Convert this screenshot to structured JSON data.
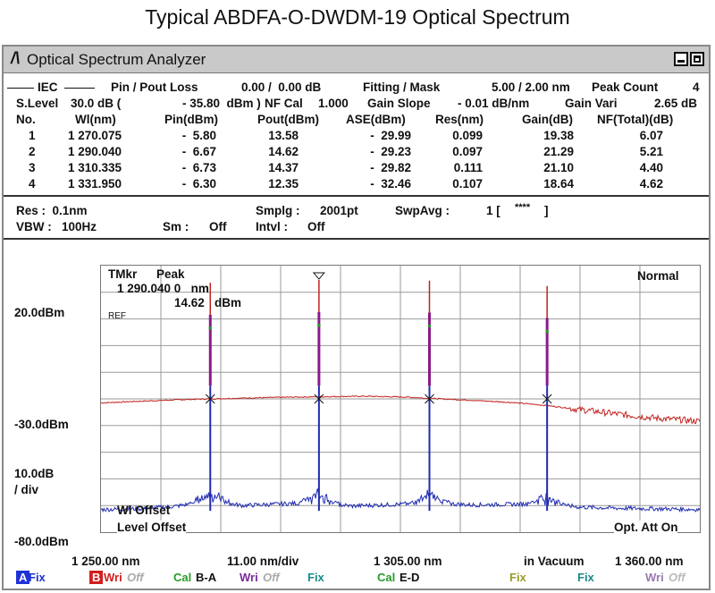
{
  "page_title": "Typical ABDFA-O-DWDM-19 Optical Spectrum",
  "window": {
    "title": "Optical Spectrum Analyzer",
    "logo": "/\\"
  },
  "header": {
    "iec": "IEC",
    "pin_pout_label": "Pin / Pout Loss",
    "pin_pout_value": "0.00 /  0.00 dB",
    "fitting_label": "Fitting / Mask",
    "fitting_value": "5.00 / 2.00 nm",
    "peak_count_label": "Peak Count",
    "peak_count_value": "4",
    "slevel_label": "S.Level",
    "slevel_value": "30.0 dB (",
    "slevel_dbm": "- 35.80  dBm )",
    "nfcal_label": "NF Cal",
    "nfcal_value": "1.000",
    "gain_slope_label": "Gain Slope",
    "gain_slope_value": "- 0.01 dB/nm",
    "gain_vari_label": "Gain Vari",
    "gain_vari_value": "2.65 dB"
  },
  "table": {
    "columns": [
      "No.",
      "Wl(nm)",
      "Pin(dBm)",
      "Pout(dBm)",
      "ASE(dBm)",
      "Res(nm)",
      "Gain(dB)",
      "NF(Total)(dB)"
    ],
    "rows": [
      [
        "1",
        "1 270.075",
        "-  5.80",
        "13.58",
        "-  29.99",
        "0.099",
        "19.38",
        "6.07"
      ],
      [
        "2",
        "1 290.040",
        "-  6.67",
        "14.62",
        "-  29.23",
        "0.097",
        "21.29",
        "5.21"
      ],
      [
        "3",
        "1 310.335",
        "-  6.73",
        "14.37",
        "-  29.82",
        "0.111",
        "21.10",
        "4.40"
      ],
      [
        "4",
        "1 331.950",
        "-  6.30",
        "12.35",
        "-  32.46",
        "0.107",
        "18.64",
        "4.62"
      ]
    ]
  },
  "settings": {
    "res": "Res :  0.1nm",
    "smplg_label": "Smplg :",
    "smplg_value": "2001pt",
    "swpavg_label": "SwpAvg :",
    "swpavg_value": "1 [",
    "swpavg_stars": "****",
    "swpavg_end": "]",
    "vbw": "VBW :   100Hz",
    "sm_label": "Sm :",
    "sm_value": "Off",
    "intvl_label": "Intvl :",
    "intvl_value": "Off"
  },
  "graph": {
    "tmkr_label": "TMkr",
    "peak_label": "Peak",
    "marker_wl": "1 290.040 0   nm",
    "marker_pow": "14.62   dBm",
    "ref_label": "REF",
    "mode": "Normal",
    "y_top": "20.0dBm",
    "y_mid": "-30.0dBm",
    "y_scale_1": "10.0dB",
    "y_scale_2": "/ div",
    "y_bottom": "-80.0dBm",
    "wl_offset": "Wl Offset",
    "level_offset": "Level Offset",
    "opt_att": "Opt. Att On",
    "x_start": "1 250.00 nm",
    "x_div": "11.00 nm/div",
    "x_center": "1 305.00 nm",
    "x_medium": "in Vacuum",
    "x_stop": "1 360.00 nm"
  },
  "bottom_bar": {
    "a_tag": "A",
    "a_fix": "Fix",
    "b_tag": "B",
    "b_wri": "Wri",
    "b_off": "Off",
    "cal_ba": "Cal",
    "cal_ba_value": "B-A",
    "wri1": "Wri",
    "wri1_off": "Off",
    "fix1": "Fix",
    "cal_ed": "Cal",
    "cal_ed_value": "E-D",
    "fix2": "Fix",
    "fix3": "Fix",
    "wri2": "Wri",
    "wri2_off": "Off"
  },
  "colors": {
    "red_trace": "#c0221e",
    "blue_trace": "#1f2bb0",
    "peak_magenta": "#8a1a8a",
    "tag_a": "#1e32d6",
    "tag_b": "#d21e1e",
    "green": "#2a9a2a",
    "purple": "#7a2a9a",
    "teal": "#1a8a8a",
    "olive": "#9a9a2a",
    "lavender": "#9a7ab0"
  },
  "chart_data": {
    "type": "line",
    "xlabel": "",
    "ylabel": "",
    "xlim": [
      1250.0,
      1360.0
    ],
    "ylim": [
      -80.0,
      20.0
    ],
    "grid": true,
    "series": [
      {
        "color": "#c0221e",
        "x": [
          1250,
          1258,
          1266,
          1270.075,
          1278,
          1286,
          1290.04,
          1298,
          1306,
          1310.335,
          1318,
          1326,
          1331.95,
          1338,
          1345,
          1352,
          1360
        ],
        "y": [
          -31.5,
          -30.8,
          -30.2,
          -30.0,
          -29.6,
          -29.3,
          -29.2,
          -29.0,
          -29.3,
          -29.8,
          -30.5,
          -31.4,
          -32.5,
          -34.0,
          -35.7,
          -37.2,
          -38.4
        ]
      },
      {
        "color": "#1f2bb0",
        "x": [
          1250,
          1258,
          1264,
          1270.075,
          1276,
          1282,
          1290.04,
          1296,
          1304,
          1310.335,
          1318,
          1326,
          1331.95,
          1338,
          1345,
          1352,
          1360
        ],
        "y": [
          -71.5,
          -71.2,
          -70.2,
          -68.2,
          -70.0,
          -69.5,
          -68.8,
          -70.2,
          -69.6,
          -68.9,
          -69.8,
          -69.5,
          -69.3,
          -70.6,
          -71.0,
          -71.2,
          -71.5
        ]
      }
    ],
    "peaks": [
      {
        "x": 1270.075,
        "y": 13.58
      },
      {
        "x": 1290.04,
        "y": 14.62
      },
      {
        "x": 1310.335,
        "y": 14.37
      },
      {
        "x": 1331.95,
        "y": 12.35
      }
    ]
  }
}
